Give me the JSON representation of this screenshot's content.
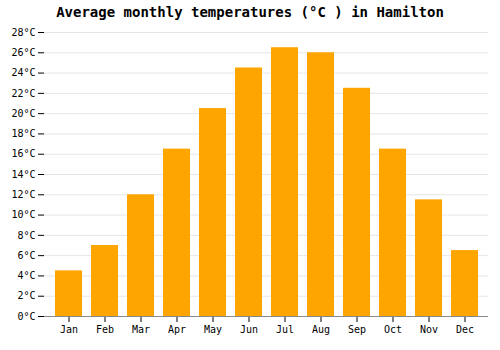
{
  "chart_data": {
    "type": "bar",
    "title": "Average monthly temperatures (°C ) in Hamilton",
    "categories": [
      "Jan",
      "Feb",
      "Mar",
      "Apr",
      "May",
      "Jun",
      "Jul",
      "Aug",
      "Sep",
      "Oct",
      "Nov",
      "Dec"
    ],
    "values": [
      4.5,
      7.0,
      12.0,
      16.5,
      20.5,
      24.5,
      26.5,
      26.0,
      22.5,
      16.5,
      11.5,
      6.5
    ],
    "color": "#FFA500",
    "ylim": [
      0,
      28
    ],
    "yticks": [
      {
        "value": 0,
        "label": "0°C"
      },
      {
        "value": 2,
        "label": "2°C"
      },
      {
        "value": 4,
        "label": "4°C"
      },
      {
        "value": 6,
        "label": "6°C"
      },
      {
        "value": 8,
        "label": "8°C"
      },
      {
        "value": 10,
        "label": "10°C"
      },
      {
        "value": 12,
        "label": "12°C"
      },
      {
        "value": 14,
        "label": "14°C"
      },
      {
        "value": 16,
        "label": "16°C"
      },
      {
        "value": 18,
        "label": "18°C"
      },
      {
        "value": 20,
        "label": "20°C"
      },
      {
        "value": 22,
        "label": "22°C"
      },
      {
        "value": 24,
        "label": "24°C"
      },
      {
        "value": 26,
        "label": "26°C"
      },
      {
        "value": 28,
        "label": "28°C"
      }
    ],
    "grid": true
  }
}
